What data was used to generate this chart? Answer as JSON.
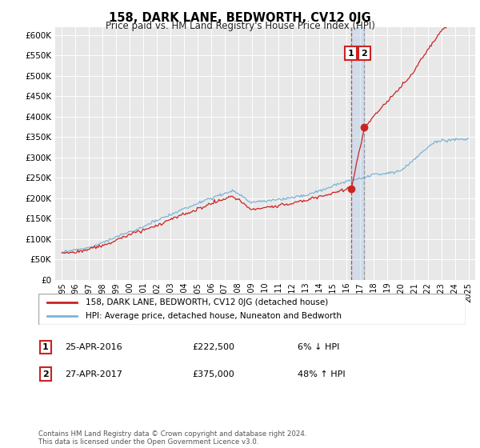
{
  "title": "158, DARK LANE, BEDWORTH, CV12 0JG",
  "subtitle": "Price paid vs. HM Land Registry's House Price Index (HPI)",
  "legend_line1": "158, DARK LANE, BEDWORTH, CV12 0JG (detached house)",
  "legend_line2": "HPI: Average price, detached house, Nuneaton and Bedworth",
  "annotation1_label": "1",
  "annotation1_date": "25-APR-2016",
  "annotation1_price": "£222,500",
  "annotation1_pct": "6% ↓ HPI",
  "annotation1_year": 2016.32,
  "annotation1_value": 222500,
  "annotation2_label": "2",
  "annotation2_date": "27-APR-2017",
  "annotation2_price": "£375,000",
  "annotation2_pct": "48% ↑ HPI",
  "annotation2_year": 2017.32,
  "annotation2_value": 375000,
  "footer": "Contains HM Land Registry data © Crown copyright and database right 2024.\nThis data is licensed under the Open Government Licence v3.0.",
  "hpi_color": "#7ab4d8",
  "price_color": "#cc2222",
  "ylim": [
    0,
    620000
  ],
  "yticks": [
    0,
    50000,
    100000,
    150000,
    200000,
    250000,
    300000,
    350000,
    400000,
    450000,
    500000,
    550000,
    600000
  ],
  "ytick_labels": [
    "£0",
    "£50K",
    "£100K",
    "£150K",
    "£200K",
    "£250K",
    "£300K",
    "£350K",
    "£400K",
    "£450K",
    "£500K",
    "£550K",
    "£600K"
  ],
  "xlim_start": 1994.5,
  "xlim_end": 2025.5,
  "xticks": [
    1995,
    1996,
    1997,
    1998,
    1999,
    2000,
    2001,
    2002,
    2003,
    2004,
    2005,
    2006,
    2007,
    2008,
    2009,
    2010,
    2011,
    2012,
    2013,
    2014,
    2015,
    2016,
    2017,
    2018,
    2019,
    2020,
    2021,
    2022,
    2023,
    2024,
    2025
  ],
  "background_color": "#e8e8e8",
  "plot_bg_color": "#ffffff"
}
